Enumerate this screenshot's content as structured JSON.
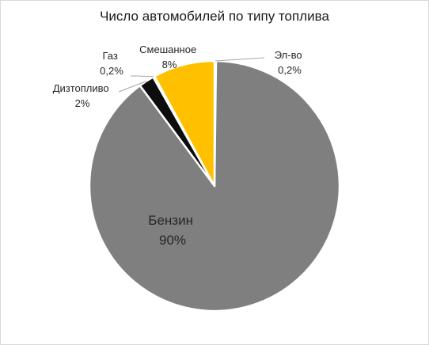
{
  "chart_data": {
    "type": "pie",
    "title": "Число автомобилей по типу топлива",
    "slices": [
      {
        "name": "Эл-во",
        "value": 0.2,
        "value_label": "0,2%",
        "color": "#7f7f7f"
      },
      {
        "name": "Бензин",
        "value": 90,
        "value_label": "90%",
        "color": "#7f7f7f"
      },
      {
        "name": "Дизтопливо",
        "value": 2,
        "value_label": "2%",
        "color": "#0d0d0d"
      },
      {
        "name": "Газ",
        "value": 0.2,
        "value_label": "0,2%",
        "color": "#7f7f7f"
      },
      {
        "name": "Смешанное",
        "value": 8,
        "value_label": "8%",
        "color": "#ffc000"
      }
    ]
  }
}
